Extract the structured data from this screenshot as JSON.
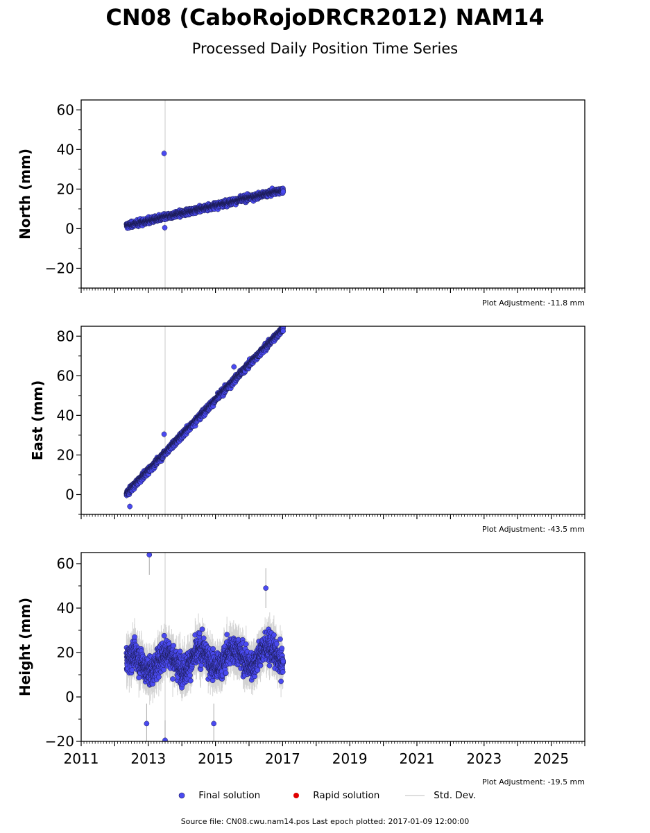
{
  "title": "CN08 (CaboRojoDRCR2012) NAM14",
  "subtitle": "Processed Daily Position Time Series",
  "colors": {
    "final": "#4a4af0",
    "rapid": "#e00000",
    "stddev": "#d3d3d3",
    "vline": "#d3d3d3"
  },
  "chart_data": [
    {
      "type": "scatter",
      "ylabel": "North (mm)",
      "ylim": [
        -30,
        65
      ],
      "yticks": [
        -20,
        0,
        20,
        40,
        60
      ],
      "yticklabels": [
        "−20",
        "0",
        "20",
        "40",
        "60"
      ],
      "xlim": [
        2011,
        2026
      ],
      "note": "Plot Adjustment: -11.8 mm",
      "trend": {
        "x": [
          2012.35,
          2017.02
        ],
        "y": [
          1.5,
          19.5
        ]
      },
      "scatter_sd": 1.8,
      "offsets": [
        {
          "x": 2013.5,
          "y": 0
        }
      ],
      "outliers": [
        {
          "x": 2013.47,
          "y": 38
        },
        {
          "x": 2013.49,
          "y": 0.5
        }
      ],
      "std_dev": 1.2
    },
    {
      "type": "scatter",
      "ylabel": "East (mm)",
      "ylim": [
        -10,
        85
      ],
      "yticks": [
        0,
        20,
        40,
        60,
        80
      ],
      "yticklabels": [
        "0",
        "20",
        "40",
        "60",
        "80"
      ],
      "xlim": [
        2011,
        2026
      ],
      "note": "Plot Adjustment: -43.5 mm",
      "trend": {
        "x": [
          2012.35,
          2017.02
        ],
        "y": [
          0.5,
          84
        ]
      },
      "scatter_sd": 2.0,
      "offsets": [
        {
          "x": 2013.5,
          "y": 0
        }
      ],
      "outliers": [
        {
          "x": 2013.47,
          "y": 30.5
        },
        {
          "x": 2012.45,
          "y": -6
        },
        {
          "x": 2015.55,
          "y": 64.5
        }
      ],
      "std_dev": 1.2
    },
    {
      "type": "scatter",
      "ylabel": "Height (mm)",
      "ylim": [
        -20,
        65
      ],
      "yticks": [
        -20,
        0,
        20,
        40,
        60
      ],
      "yticklabels": [
        "−20",
        "0",
        "20",
        "40",
        "60"
      ],
      "xlim": [
        2011,
        2026
      ],
      "xticks": [
        2011,
        2013,
        2015,
        2017,
        2019,
        2021,
        2023,
        2025
      ],
      "xticklabels": [
        "2011",
        "2013",
        "2015",
        "2017",
        "2019",
        "2021",
        "2023",
        "2025"
      ],
      "note": "Plot Adjustment: -19.5 mm",
      "trend": {
        "x": [
          2012.35,
          2017.02
        ],
        "y": [
          15,
          19
        ]
      },
      "scatter_sd": 8,
      "offsets": [],
      "outliers": [
        {
          "x": 2013.03,
          "y": 64
        },
        {
          "x": 2013.5,
          "y": -19.5
        },
        {
          "x": 2014.95,
          "y": -12
        },
        {
          "x": 2016.5,
          "y": 49
        },
        {
          "x": 2012.95,
          "y": -12
        }
      ],
      "std_dev": 6
    }
  ],
  "data_span": [
    2012.35,
    2017.02
  ],
  "vertical_line_x": 2013.5,
  "legend": {
    "final": "Final solution",
    "rapid": "Rapid solution",
    "stddev": "Std. Dev."
  },
  "footer": "Source file: CN08.cwu.nam14.pos  Last epoch plotted: 2017-01-09 12:00:00"
}
